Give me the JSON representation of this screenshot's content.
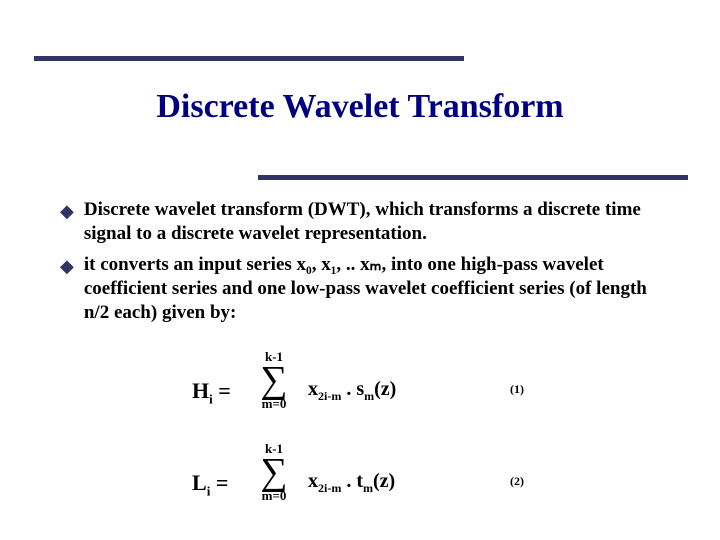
{
  "title": "Discrete Wavelet Transform",
  "bullets": [
    "Discrete wavelet transform (DWT), which transforms a discrete time signal to a discrete wavelet representation.",
    "it converts an input series x₀, x₁, .. xₘ, into one high-pass wavelet coefficient series and one low-pass wavelet coefficient series (of length n/2 each) given by:"
  ],
  "eq": {
    "sumUpper": "k-1",
    "sumLower": "m=0",
    "h": {
      "lhs": "H",
      "lhsSub": "i",
      "eq": " = ",
      "x": "x",
      "xSub": "2i-m",
      "dot": " . ",
      "s": "s",
      "sSub": "m",
      "z": "(z)",
      "num": "(1)"
    },
    "l": {
      "lhs": "L",
      "lhsSub": "i",
      "eq": " = ",
      "x": "x",
      "xSub": "2i-m",
      "dot": " . ",
      "t": "t",
      "tSub": "m",
      "z": "(z)",
      "num": "(2)"
    }
  },
  "colors": {
    "accent": "#333366",
    "titleColor": "#000080"
  }
}
